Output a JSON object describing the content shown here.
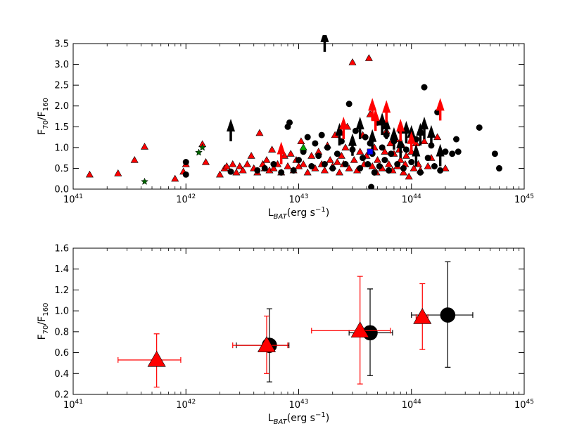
{
  "chart_data": [
    {
      "type": "scatter",
      "xlabel": "L_BAT(erg s^-1)",
      "ylabel": "F70/F160",
      "xscale": "log",
      "xlim": [
        1e+41,
        1e+45
      ],
      "ylim": [
        0,
        3.5
      ],
      "x_ticks": [
        {
          "value": 1e+41,
          "label": "10",
          "exp": "41"
        },
        {
          "value": 1e+42,
          "label": "10",
          "exp": "42"
        },
        {
          "value": 1e+43,
          "label": "10",
          "exp": "43"
        },
        {
          "value": 1e+44,
          "label": "10",
          "exp": "44"
        },
        {
          "value": 1e+45,
          "label": "10",
          "exp": "45"
        }
      ],
      "y_ticks": [
        "0.0",
        "0.5",
        "1.0",
        "1.5",
        "2.0",
        "2.5",
        "3.0",
        "3.5"
      ],
      "series": [
        {
          "marker": "triangle",
          "color": "#ff0000",
          "points": [
            [
              1.4e+41,
              0.35
            ],
            [
              2.5e+41,
              0.38
            ],
            [
              3.5e+41,
              0.7
            ],
            [
              4.3e+41,
              1.02
            ],
            [
              8e+41,
              0.25
            ],
            [
              9.5e+41,
              0.42
            ],
            [
              1e+42,
              0.6
            ],
            [
              1.4e+42,
              1.08
            ],
            [
              1.5e+42,
              0.65
            ],
            [
              2e+42,
              0.35
            ],
            [
              2.2e+42,
              0.5
            ],
            [
              2.3e+42,
              0.55
            ],
            [
              2.6e+42,
              0.6
            ],
            [
              2.8e+42,
              0.4
            ],
            [
              3e+42,
              0.55
            ],
            [
              3.2e+42,
              0.45
            ],
            [
              3.5e+42,
              0.6
            ],
            [
              3.8e+42,
              0.8
            ],
            [
              4e+42,
              0.5
            ],
            [
              4.3e+42,
              0.4
            ],
            [
              4.5e+42,
              1.35
            ],
            [
              4.8e+42,
              0.6
            ],
            [
              5e+42,
              0.5
            ],
            [
              5.2e+42,
              0.7
            ],
            [
              5.5e+42,
              0.45
            ],
            [
              5.8e+42,
              0.95
            ],
            [
              6e+42,
              0.5
            ],
            [
              6.5e+42,
              0.6
            ],
            [
              7e+42,
              0.4
            ],
            [
              7.5e+42,
              0.8
            ],
            [
              8e+42,
              0.55
            ],
            [
              8.5e+42,
              0.85
            ],
            [
              9e+42,
              0.45
            ],
            [
              9.5e+42,
              0.7
            ],
            [
              1e+43,
              0.55
            ],
            [
              1.05e+43,
              1.15
            ],
            [
              1.1e+43,
              0.6
            ],
            [
              1.2e+43,
              0.4
            ],
            [
              1.3e+43,
              0.8
            ],
            [
              1.4e+43,
              0.5
            ],
            [
              1.5e+43,
              0.9
            ],
            [
              1.6e+43,
              0.6
            ],
            [
              1.7e+43,
              0.45
            ],
            [
              1.8e+43,
              1.05
            ],
            [
              1.9e+43,
              0.7
            ],
            [
              2e+43,
              0.55
            ],
            [
              2.1e+43,
              1.3
            ],
            [
              2.2e+43,
              0.65
            ],
            [
              2.3e+43,
              0.4
            ],
            [
              2.4e+43,
              0.8
            ],
            [
              2.5e+43,
              0.6
            ],
            [
              2.6e+43,
              1.0
            ],
            [
              2.7e+43,
              1.5
            ],
            [
              2.8e+43,
              0.5
            ],
            [
              3e+43,
              3.05
            ],
            [
              3.1e+43,
              0.7
            ],
            [
              3.3e+43,
              0.45
            ],
            [
              3.5e+43,
              0.9
            ],
            [
              3.7e+43,
              1.3
            ],
            [
              3.8e+43,
              0.6
            ],
            [
              4e+43,
              0.8
            ],
            [
              4.2e+43,
              3.15
            ],
            [
              4.3e+43,
              1.8
            ],
            [
              4.5e+43,
              0.55
            ],
            [
              4.7e+43,
              1.0
            ],
            [
              4.9e+43,
              0.4
            ],
            [
              5e+43,
              0.7
            ],
            [
              5.3e+43,
              1.6
            ],
            [
              5.5e+43,
              0.5
            ],
            [
              5.8e+43,
              0.9
            ],
            [
              6e+43,
              1.4
            ],
            [
              6.3e+43,
              0.6
            ],
            [
              6.5e+43,
              1.1
            ],
            [
              6.8e+43,
              0.45
            ],
            [
              7e+43,
              0.85
            ],
            [
              7.3e+43,
              1.2
            ],
            [
              7.5e+43,
              0.55
            ],
            [
              7.8e+43,
              0.95
            ],
            [
              8e+43,
              0.7
            ],
            [
              8.3e+43,
              1.05
            ],
            [
              8.5e+43,
              0.4
            ],
            [
              8.8e+43,
              0.6
            ],
            [
              9e+43,
              0.8
            ],
            [
              9.5e+43,
              0.3
            ],
            [
              1e+44,
              0.9
            ],
            [
              1.05e+44,
              0.5
            ],
            [
              1.1e+44,
              1.1
            ],
            [
              1.15e+44,
              0.6
            ],
            [
              1.2e+44,
              0.45
            ],
            [
              1.3e+44,
              1.15
            ],
            [
              1.4e+44,
              0.55
            ],
            [
              1.5e+44,
              0.75
            ],
            [
              1.7e+44,
              1.25
            ],
            [
              2e+44,
              0.5
            ]
          ]
        },
        {
          "marker": "circle",
          "color": "#000000",
          "points": [
            [
              1e+42,
              0.65
            ],
            [
              1e+42,
              0.35
            ],
            [
              2.5e+42,
              0.42
            ],
            [
              4.3e+42,
              0.45
            ],
            [
              5e+42,
              0.5
            ],
            [
              6e+42,
              0.6
            ],
            [
              7e+42,
              0.4
            ],
            [
              8e+42,
              1.5
            ],
            [
              8.3e+42,
              1.6
            ],
            [
              9e+42,
              0.45
            ],
            [
              1e+43,
              0.7
            ],
            [
              1.1e+43,
              0.9
            ],
            [
              1.2e+43,
              1.25
            ],
            [
              1.3e+43,
              0.55
            ],
            [
              1.4e+43,
              1.1
            ],
            [
              1.5e+43,
              0.8
            ],
            [
              1.6e+43,
              1.3
            ],
            [
              1.7e+43,
              0.6
            ],
            [
              1.8e+43,
              1.0
            ],
            [
              2e+43,
              0.5
            ],
            [
              2.2e+43,
              0.85
            ],
            [
              2.4e+43,
              1.15
            ],
            [
              2.6e+43,
              0.6
            ],
            [
              2.8e+43,
              2.05
            ],
            [
              3e+43,
              0.95
            ],
            [
              3.2e+43,
              1.4
            ],
            [
              3.5e+43,
              0.5
            ],
            [
              3.7e+43,
              0.75
            ],
            [
              3.9e+43,
              1.25
            ],
            [
              4.1e+43,
              0.6
            ],
            [
              4.3e+43,
              1.1
            ],
            [
              4.4e+43,
              0.05
            ],
            [
              4.5e+43,
              0.85
            ],
            [
              4.7e+43,
              0.4
            ],
            [
              5e+43,
              1.6
            ],
            [
              5.2e+43,
              0.55
            ],
            [
              5.5e+43,
              1.0
            ],
            [
              5.8e+43,
              0.7
            ],
            [
              6e+43,
              1.3
            ],
            [
              6.3e+43,
              0.45
            ],
            [
              6.6e+43,
              0.85
            ],
            [
              7e+43,
              1.15
            ],
            [
              7.5e+43,
              0.6
            ],
            [
              8e+43,
              1.4
            ],
            [
              8.5e+43,
              0.5
            ],
            [
              9e+43,
              0.95
            ],
            [
              1e+44,
              0.65
            ],
            [
              1.1e+44,
              1.2
            ],
            [
              1.2e+44,
              0.4
            ],
            [
              1.3e+44,
              2.45
            ],
            [
              1.4e+44,
              0.75
            ],
            [
              1.5e+44,
              1.05
            ],
            [
              1.6e+44,
              0.55
            ],
            [
              1.7e+44,
              1.85
            ],
            [
              1.8e+44,
              0.45
            ],
            [
              2e+44,
              0.9
            ],
            [
              2.3e+44,
              0.85
            ],
            [
              2.5e+44,
              1.2
            ],
            [
              2.6e+44,
              0.9
            ],
            [
              4e+44,
              1.48
            ],
            [
              5.5e+44,
              0.85
            ],
            [
              6e+44,
              0.5
            ]
          ]
        },
        {
          "marker": "upper-limit-arrow",
          "color": "#000000",
          "points": [
            [
              2.5e+42,
              1.15
            ],
            [
              1.7e+43,
              3.3
            ],
            [
              2.3e+43,
              1.05
            ],
            [
              3e+43,
              0.8
            ],
            [
              3.5e+43,
              1.2
            ],
            [
              4.5e+43,
              0.9
            ],
            [
              5.5e+43,
              1.3
            ],
            [
              6e+43,
              1.2
            ],
            [
              7e+43,
              0.95
            ],
            [
              8e+43,
              0.75
            ],
            [
              9e+43,
              1.1
            ],
            [
              1e+44,
              1.0
            ],
            [
              1.1e+44,
              0.55
            ],
            [
              1.2e+44,
              1.05
            ],
            [
              1.3e+44,
              1.2
            ],
            [
              1.5e+44,
              1.0
            ],
            [
              1.8e+44,
              0.55
            ]
          ]
        },
        {
          "marker": "upper-limit-arrow",
          "color": "#ff0000",
          "points": [
            [
              7e+42,
              0.6
            ],
            [
              2.5e+43,
              1.2
            ],
            [
              4.5e+43,
              1.65
            ],
            [
              4.8e+43,
              1.4
            ],
            [
              6e+43,
              1.6
            ],
            [
              8e+43,
              1.15
            ],
            [
              1e+44,
              0.85
            ],
            [
              1.8e+44,
              1.65
            ]
          ]
        },
        {
          "marker": "star",
          "color": "#006400",
          "points": [
            [
              4.3e+41,
              0.18
            ],
            [
              1.3e+42,
              0.88
            ],
            [
              1.4e+42,
              1.0
            ]
          ]
        },
        {
          "marker": "triangle",
          "color": "#00aa00",
          "points": [
            [
              1.1e+43,
              1.0
            ]
          ]
        },
        {
          "marker": "square",
          "color": "#0000ff",
          "points": [
            [
              4.3e+43,
              0.9
            ]
          ]
        }
      ]
    },
    {
      "type": "scatter",
      "xlabel": "L_BAT(erg s^-1)",
      "ylabel": "F70/F160",
      "xscale": "log",
      "xlim": [
        1e+41,
        1e+45
      ],
      "ylim": [
        0.2,
        1.6
      ],
      "x_ticks": [
        {
          "value": 1e+41,
          "label": "10",
          "exp": "41"
        },
        {
          "value": 1e+42,
          "label": "10",
          "exp": "42"
        },
        {
          "value": 1e+43,
          "label": "10",
          "exp": "43"
        },
        {
          "value": 1e+44,
          "label": "10",
          "exp": "44"
        },
        {
          "value": 1e+45,
          "label": "10",
          "exp": "45"
        }
      ],
      "y_ticks": [
        "0.2",
        "0.4",
        "0.6",
        "0.8",
        "1.0",
        "1.2",
        "1.4",
        "1.6"
      ],
      "series": [
        {
          "marker": "circle",
          "color": "#000000",
          "points": [
            {
              "x": 5.5e+42,
              "y": 0.67,
              "xerr": [
                2.8e+42,
                8.2e+42
              ],
              "yerr": [
                0.32,
                1.02
              ]
            },
            {
              "x": 4.3e+43,
              "y": 0.79,
              "xerr": [
                2.8e+43,
                6.8e+43
              ],
              "yerr": [
                0.38,
                1.21
              ]
            },
            {
              "x": 2.1e+44,
              "y": 0.96,
              "xerr": [
                1e+44,
                3.5e+44
              ],
              "yerr": [
                0.46,
                1.47
              ]
            }
          ]
        },
        {
          "marker": "triangle",
          "color": "#ff0000",
          "points": [
            {
              "x": 5.5e+41,
              "y": 0.53,
              "xerr": [
                2.5e+41,
                9e+41
              ],
              "yerr": [
                0.27,
                0.78
              ]
            },
            {
              "x": 5.2e+42,
              "y": 0.67,
              "xerr": [
                2.6e+42,
                8e+42
              ],
              "yerr": [
                0.4,
                0.95
              ]
            },
            {
              "x": 3.5e+43,
              "y": 0.81,
              "xerr": [
                1.3e+43,
                6.5e+43
              ],
              "yerr": [
                0.3,
                1.33
              ]
            },
            {
              "x": 1.25e+44,
              "y": 0.94,
              "xerr": [
                1.1e+44,
                1.4e+44
              ],
              "yerr": [
                0.63,
                1.26
              ]
            }
          ]
        }
      ]
    }
  ]
}
